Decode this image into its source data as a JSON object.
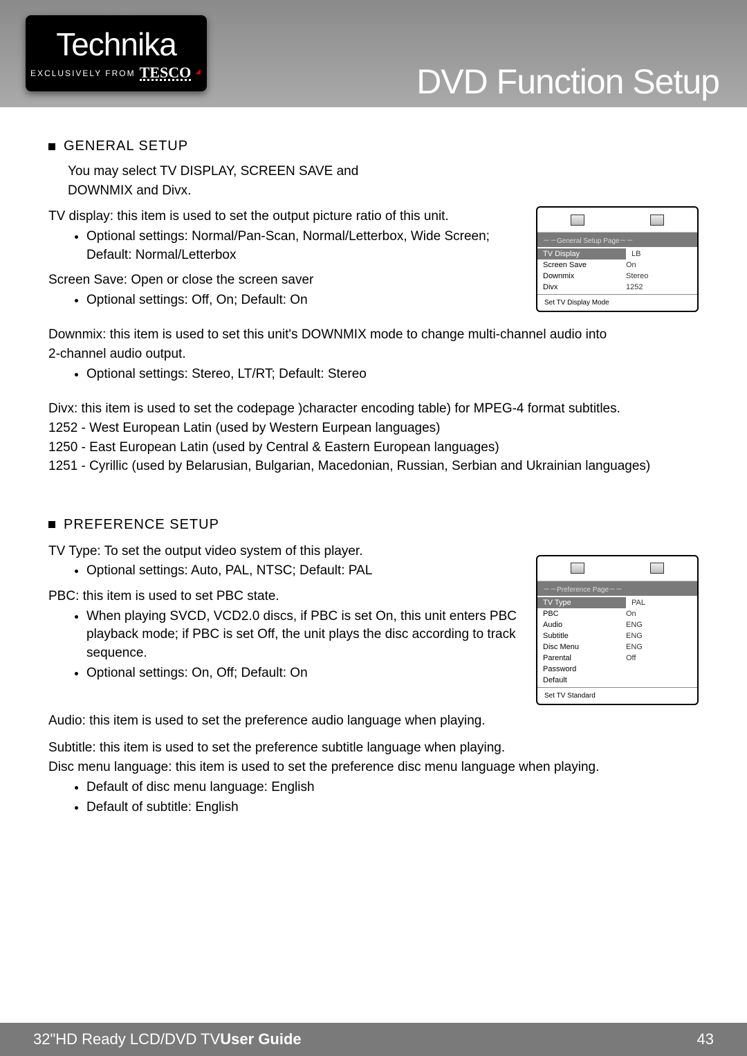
{
  "header": {
    "brand": "Technika",
    "sub_prefix": "EXCLUSIVELY FROM",
    "sub_brand": "TESCO",
    "title": "DVD Function Setup"
  },
  "general": {
    "title": "GENERAL SETUP",
    "intro1": "You may select TV DISPLAY, SCREEN SAVE and",
    "intro2": "DOWNMIX and Divx.",
    "tvdisplay_label": "TV display: this item is used to set the output picture ratio of this unit.",
    "tvdisplay_opt1": "Optional settings: Normal/Pan-Scan, Normal/Letterbox, Wide Screen; Default: Normal/Letterbox",
    "screensave_label": "Screen Save: Open or close the screen saver",
    "screensave_opt1": "Optional settings: Off, On; Default: On",
    "downmix_p1": "Downmix: this item is used to set this unit's DOWNMIX mode to change multi-channel audio into",
    "downmix_p2": "2-channel audio output.",
    "downmix_opt": "Optional settings: Stereo, LT/RT;  Default: Stereo",
    "divx_label": "Divx: this item is used to set the codepage )character encoding table) for MPEG-4 format subtitles.",
    "divx_1252": "1252 - West European Latin (used by Western Eurpean languages)",
    "divx_1250": "1250 - East European Latin (used by Central & Eastern European languages)",
    "divx_1251": "1251 - Cyrillic (used by Belarusian, Bulgarian, Macedonian, Russian, Serbian and Ukrainian languages)"
  },
  "osd1": {
    "tab": "－－General Setup Page－－",
    "rows": [
      {
        "k": "TV Display",
        "v": "LB"
      },
      {
        "k": "Screen Save",
        "v": "On"
      },
      {
        "k": "Downmix",
        "v": "Stereo"
      },
      {
        "k": "Divx",
        "v": "1252"
      }
    ],
    "hint": "Set TV Display Mode"
  },
  "pref": {
    "title": "PREFERENCE SETUP",
    "tvtype_label": "TV Type: To set the output video system of this player.",
    "tvtype_opt": "Optional settings: Auto, PAL, NTSC; Default: PAL",
    "pbc_label": "PBC: this item is used to set PBC state.",
    "pbc_desc": "When playing SVCD, VCD2.0 discs, if PBC is set On, this unit enters PBC playback mode; if PBC is set Off, the unit plays the disc according to track sequence.",
    "pbc_opt": "Optional settings: On, Off; Default: On",
    "audio_label": "Audio: this item is used to set the preference audio language when playing.",
    "subtitle_label": "Subtitle: this item is used to set the preference subtitle language when playing.",
    "discmenu_label": "Disc menu language: this item is used to set the preference disc menu language when playing.",
    "def1": "Default of disc menu language: English",
    "def2": "Default of subtitle: English"
  },
  "osd2": {
    "tab": "－－Preference Page－－",
    "rows": [
      {
        "k": "TV Type",
        "v": "PAL"
      },
      {
        "k": "PBC",
        "v": "On"
      },
      {
        "k": "Audio",
        "v": "ENG"
      },
      {
        "k": "Subtitle",
        "v": "ENG"
      },
      {
        "k": "Disc Menu",
        "v": "ENG"
      },
      {
        "k": "Parental",
        "v": "Off"
      },
      {
        "k": "Password",
        "v": ""
      },
      {
        "k": "Default",
        "v": ""
      }
    ],
    "hint": "Set TV Standard"
  },
  "footer": {
    "size": "32\"",
    "mid": " HD Ready LCD/DVD TV ",
    "bold": "User Guide",
    "page": "43"
  }
}
